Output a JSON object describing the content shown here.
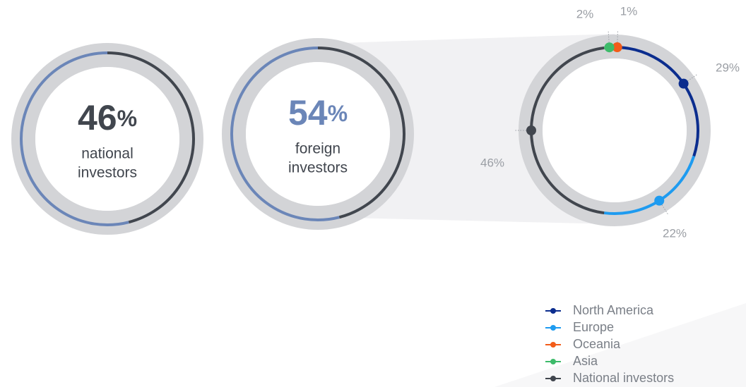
{
  "chart_data": [
    {
      "type": "donut",
      "values": [
        46,
        54
      ],
      "colors": [
        "#41464e",
        "#6b86b8"
      ],
      "highlight": 0,
      "unit": "%",
      "label_lines": [
        "national",
        "investors"
      ]
    },
    {
      "type": "donut",
      "values": [
        46,
        54
      ],
      "colors": [
        "#41464e",
        "#6b86b8"
      ],
      "highlight": 1,
      "unit": "%",
      "label_lines": [
        "foreign",
        "investors"
      ]
    },
    {
      "type": "breakdown",
      "series": [
        {
          "name": "North America",
          "color": "#0b2d8e",
          "value": 29,
          "value_label": "29%"
        },
        {
          "name": "Europe",
          "color": "#1e9bf0",
          "value": 22,
          "value_label": "22%"
        },
        {
          "name": "Oceania",
          "color": "#f25c19",
          "value": 1,
          "value_label": "1%"
        },
        {
          "name": "Asia",
          "color": "#3dbb6a",
          "value": 2,
          "value_label": "2%"
        },
        {
          "name": "National investors",
          "color": "#41464e",
          "value": 46,
          "value_label": "46%"
        }
      ]
    }
  ]
}
